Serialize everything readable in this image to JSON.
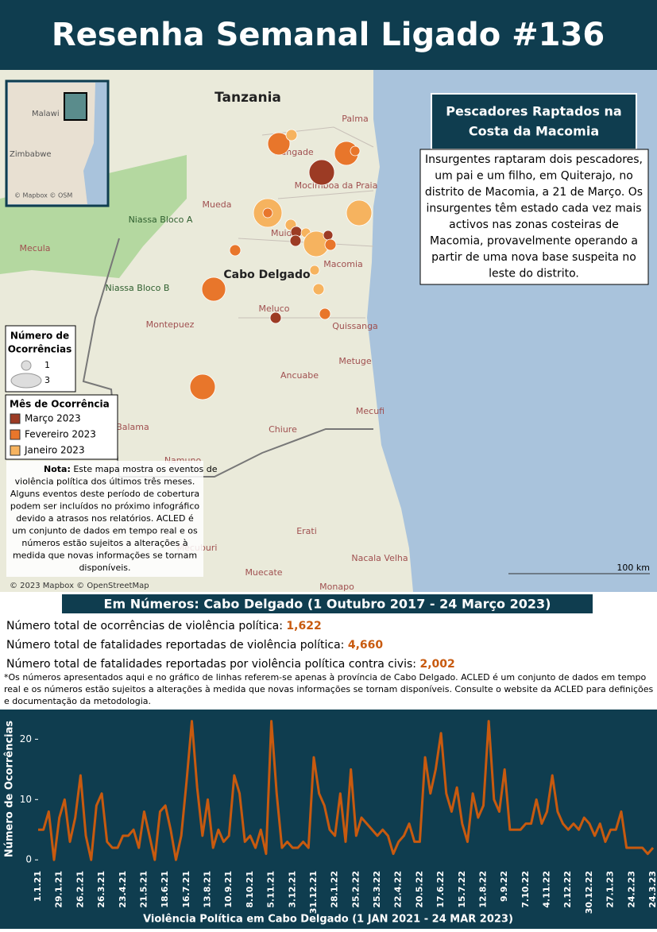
{
  "header": {
    "title": "Resenha Semanal Ligado #136"
  },
  "map": {
    "labels": [
      "Tanzania",
      "Palma",
      "Nangade",
      "Mocimboa da Praia",
      "Mueda",
      "Muidumbe",
      "Macomia",
      "Cabo Delgado",
      "Niassa Bloco A",
      "Niassa Bloco B",
      "Mecula",
      "Meluco",
      "Quissanga",
      "Montepuez",
      "Metuge",
      "Ancuabe",
      "Mecufi",
      "Balama",
      "Chiure",
      "Namuno",
      "Erati",
      "Nacala Velha",
      "Mecuburi",
      "Muecate",
      "Monapo",
      "Malawi",
      "Zimbabwe"
    ],
    "inset_credit": "© Mapbox © OSM",
    "credit": "© 2023 Mapbox © OpenStreetMap",
    "scale": "100 km"
  },
  "callout": {
    "title": [
      "Pescadores Raptados na",
      "Costa da Macomia"
    ],
    "body": [
      "Insurgentes raptaram dois pescadores,",
      "um pai e um filho, em Quiterajo, no",
      "distrito de Macomia, a 21 de Março. Os",
      "insurgentes têm estado cada vez mais",
      "activos nas zonas costeiras de",
      "Macomia, provavelmente operando a",
      "partir de uma nova base suspeita no",
      "leste do distrito."
    ]
  },
  "legend": {
    "size_title": [
      "Número de",
      "Ocorrências"
    ],
    "size_items": [
      "1",
      "3"
    ],
    "month_title": "Mês de Ocorrência",
    "months": [
      {
        "name": "Março 2023",
        "color": "#9c3b24"
      },
      {
        "name": "Fevereiro 2023",
        "color": "#e8762b"
      },
      {
        "name": "Janeiro 2023",
        "color": "#f6b35f"
      }
    ]
  },
  "note": {
    "label": "Nota:",
    "lines": [
      " Este mapa mostra os eventos de",
      "violência política dos últimos três meses.",
      "Alguns eventos deste período de cobertura",
      "podem ser incluídos no próximo infográfico",
      "devido a atrasos nos relatórios. ACLED é",
      "um conjunto de dados em tempo real e os",
      "números estão sujeitos a alterações à",
      "medida que novas informações se tornam",
      "disponíveis."
    ]
  },
  "stats": {
    "title": "Em Números: Cabo Delgado (1 Outubro 2017 - 24 Março 2023)",
    "items": [
      {
        "label": "Número total de ocorrências de violência política: ",
        "value": "1,622"
      },
      {
        "label": "Número total de fatalidades reportadas de violência política: ",
        "value": "4,660"
      },
      {
        "label": "Número total de fatalidades reportadas por violência política contra civis: ",
        "value": "2,002"
      }
    ],
    "footnote": [
      "*Os números apresentados aqui e no gráfico de linhas referem-se apenas à província de Cabo Delgado. ACLED é um conjunto de dados em tempo",
      "real e os números estão sujeitos a alterações à medida que novas informações se tornam disponíveis. Consulte o website da ACLED para definições",
      "e documentação da metodologia."
    ]
  },
  "chart_data": {
    "type": "line",
    "x_label": "Violência Política em Cabo Delgado (1 JAN 2021 - 24 MAR 2023)",
    "y_label": "Número de Ocorrências",
    "categories": [
      "1.1.21",
      null,
      null,
      null,
      "29.1.21",
      null,
      null,
      null,
      "26.2.21",
      null,
      null,
      null,
      "26.3.21",
      null,
      null,
      null,
      "23.4.21",
      null,
      null,
      null,
      "21.5.21",
      null,
      null,
      null,
      "18.6.21",
      null,
      null,
      null,
      "16.7.21",
      null,
      null,
      null,
      "13.8.21",
      null,
      null,
      null,
      "10.9.21",
      null,
      null,
      null,
      "8.10.21",
      null,
      null,
      null,
      "5.11.21",
      null,
      null,
      null,
      "3.12.21",
      null,
      null,
      null,
      "31.12.21",
      null,
      null,
      null,
      "28.1.22",
      null,
      null,
      null,
      "25.2.22",
      null,
      null,
      null,
      "25.3.22",
      null,
      null,
      null,
      "22.4.22",
      null,
      null,
      null,
      "20.5.22",
      null,
      null,
      null,
      "17.6.22",
      null,
      null,
      null,
      "15.7.22",
      null,
      null,
      null,
      "12.8.22",
      null,
      null,
      null,
      "9.9.22",
      null,
      null,
      null,
      "7.10.22",
      null,
      null,
      null,
      "4.11.22",
      null,
      null,
      null,
      "2.12.22",
      null,
      null,
      null,
      "30.12.22",
      null,
      null,
      null,
      "27.1.23",
      null,
      null,
      null,
      "24.2.23",
      null,
      null,
      null,
      "24.3.23"
    ],
    "series": [
      {
        "name": "Ocorrências",
        "color": "#c85a0f",
        "values": [
          5,
          5,
          8,
          0,
          7,
          10,
          3,
          7,
          14,
          4,
          0,
          9,
          11,
          3,
          2,
          2,
          4,
          4,
          5,
          2,
          8,
          4,
          0,
          8,
          9,
          5,
          0,
          4,
          13,
          23,
          12,
          4,
          10,
          2,
          5,
          3,
          4,
          14,
          11,
          3,
          4,
          2,
          5,
          1,
          23,
          11,
          2,
          3,
          2,
          2,
          3,
          2,
          17,
          11,
          9,
          5,
          4,
          11,
          3,
          15,
          4,
          7,
          6,
          5,
          4,
          5,
          4,
          1,
          3,
          4,
          6,
          3,
          3,
          17,
          11,
          15,
          21,
          11,
          8,
          12,
          6,
          3,
          11,
          7,
          9,
          23,
          10,
          8,
          15,
          5,
          5,
          5,
          6,
          6,
          10,
          6,
          8,
          14,
          8,
          6,
          5,
          6,
          5,
          7,
          6,
          4,
          6,
          3,
          5,
          5,
          8,
          2,
          2,
          2,
          2,
          1,
          2
        ]
      }
    ],
    "ylim": [
      -0.5,
      24
    ],
    "yticks": [
      0,
      10,
      20
    ],
    "grid": false
  }
}
